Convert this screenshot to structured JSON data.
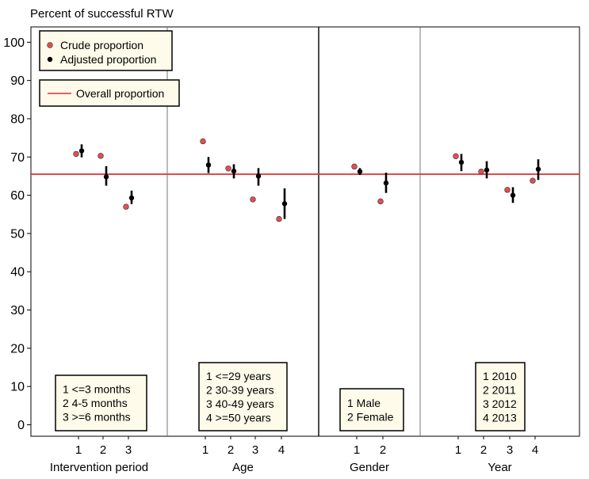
{
  "chart_data": {
    "type": "scatter",
    "title": "Percent of successful RTW",
    "ylim": [
      -3,
      104
    ],
    "y_ticks": [
      "0",
      "10",
      "20",
      "30",
      "40",
      "50",
      "60",
      "70",
      "80",
      "90",
      "100"
    ],
    "overall_proportion": 65.5,
    "legend": {
      "placement": "top-left",
      "crude_label": "Crude proportion",
      "adjusted_label": "Adjusted proportion",
      "overall_label": "Overall proportion"
    },
    "colors": {
      "crude": "#e05050",
      "adjusted": "#000000",
      "overall": "#e03030"
    },
    "groups": [
      {
        "label": "Intervention period",
        "categories": [
          "1",
          "2",
          "3"
        ],
        "crude": [
          70.8,
          70.3,
          57.0
        ],
        "adjusted": [
          71.6,
          64.8,
          59.3
        ],
        "ci_low": [
          69.9,
          62.5,
          57.7
        ],
        "ci_high": [
          73.3,
          67.6,
          61.2
        ],
        "key": [
          "1 <=3 months",
          "2 4-5 months",
          "3 >=6 months"
        ]
      },
      {
        "label": "Age",
        "categories": [
          "1",
          "2",
          "3",
          "4"
        ],
        "crude": [
          74.1,
          67.0,
          58.9,
          53.8
        ],
        "adjusted": [
          67.9,
          66.3,
          65.0,
          57.8
        ],
        "ci_low": [
          65.8,
          64.4,
          62.5,
          53.8
        ],
        "ci_high": [
          70.0,
          68.1,
          67.1,
          61.8
        ],
        "key": [
          "1 <=29 years",
          "2 30-39 years",
          "3 40-49 years",
          "4 >=50 years"
        ]
      },
      {
        "label": "Gender",
        "categories": [
          "1",
          "2"
        ],
        "crude": [
          67.5,
          58.4
        ],
        "adjusted": [
          66.2,
          63.2
        ],
        "ci_low": [
          65.3,
          60.6
        ],
        "ci_high": [
          67.1,
          65.9
        ],
        "key": [
          "1 Male",
          "2 Female"
        ]
      },
      {
        "label": "Year",
        "categories": [
          "1",
          "2",
          "3",
          "4"
        ],
        "crude": [
          70.2,
          66.2,
          61.4,
          63.8
        ],
        "adjusted": [
          68.6,
          66.6,
          60.0,
          66.8
        ],
        "ci_low": [
          66.3,
          64.4,
          58.0,
          64.0
        ],
        "ci_high": [
          70.8,
          68.9,
          62.1,
          69.4
        ],
        "key": [
          "1 2010",
          "2 2011",
          "3 2012",
          "4 2013"
        ]
      }
    ]
  }
}
